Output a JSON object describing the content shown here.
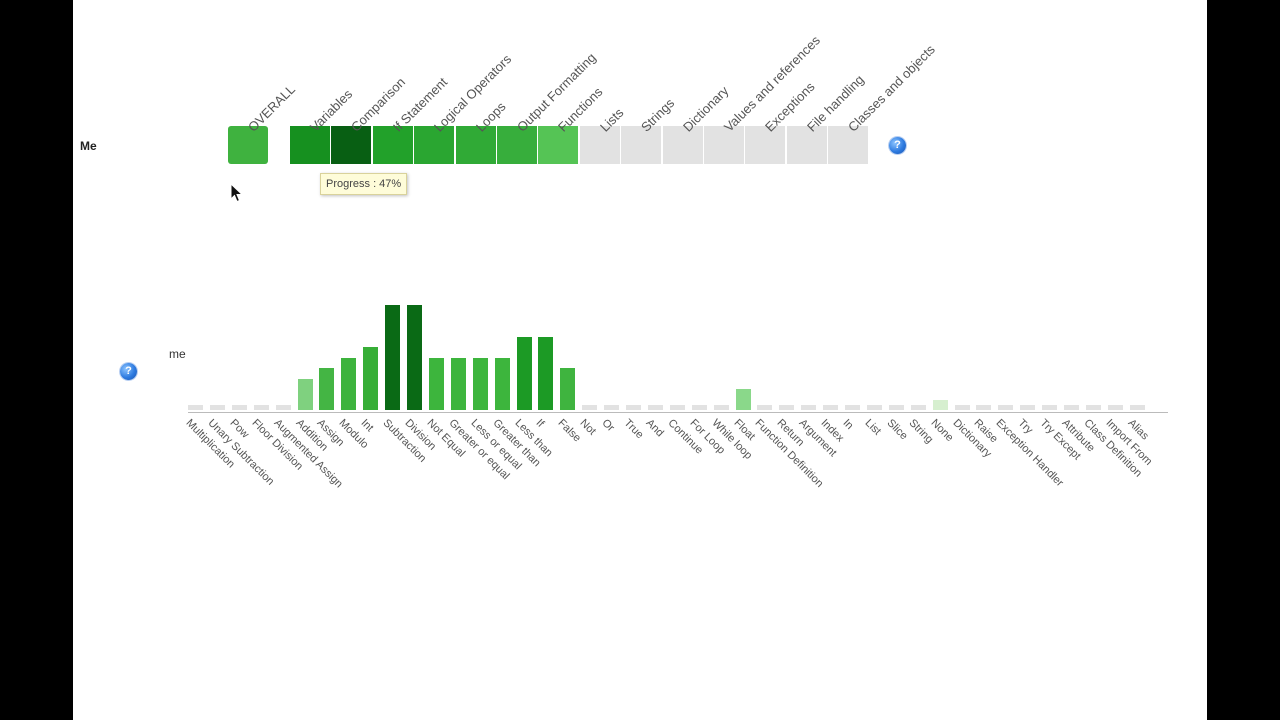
{
  "row_label": "Me",
  "columns": [
    {
      "label": "OVERALL",
      "color": "#3fb23f"
    },
    {
      "label": "Variables",
      "color": "#16901f"
    },
    {
      "label": "Comparison",
      "color": "#085f13"
    },
    {
      "label": "If Statement",
      "color": "#22a12a"
    },
    {
      "label": "Logical Operators",
      "color": "#2aa631"
    },
    {
      "label": "Loops",
      "color": "#30aa36"
    },
    {
      "label": "Output Formatting",
      "color": "#37ae3c"
    },
    {
      "label": "Functions",
      "color": "#55c455"
    },
    {
      "label": "Lists",
      "color": "#e2e2e2"
    },
    {
      "label": "Strings",
      "color": "#e2e2e2"
    },
    {
      "label": "Dictionary",
      "color": "#e2e2e2"
    },
    {
      "label": "Values and references",
      "color": "#e2e2e2"
    },
    {
      "label": "Exceptions",
      "color": "#e2e2e2"
    },
    {
      "label": "File handling",
      "color": "#e2e2e2"
    },
    {
      "label": "Classes and objects",
      "color": "#e2e2e2"
    }
  ],
  "tooltip": "Progress : 47%",
  "chart_label": "me",
  "chart_data": {
    "type": "bar",
    "categories": [
      "Multiplication",
      "Unary Subtraction",
      "Pow",
      "Floor Division",
      "Augmented Assign",
      "Addition",
      "Assign",
      "Modulo",
      "Int",
      "Subtraction",
      "Division",
      "Not Equal",
      "Greater or equal",
      "Less or equal",
      "Greater than",
      "Less than",
      "If",
      "False",
      "Not",
      "Or",
      "True",
      "And",
      "Continue",
      "For Loop",
      "While loop",
      "Float",
      "Function Definition",
      "Return",
      "Argument",
      "Index",
      "In",
      "List",
      "Slice",
      "String",
      "None",
      "Dictionary",
      "Raise",
      "Exception Handler",
      "Try",
      "Try Except",
      "Attribute",
      "Class Definition",
      "Import From",
      "Alias"
    ],
    "values": [
      0,
      0,
      0,
      0,
      0,
      3,
      4,
      5,
      6,
      10,
      10,
      5,
      5,
      5,
      5,
      7,
      7,
      4,
      0,
      0,
      0,
      0,
      0,
      0,
      0,
      2,
      0,
      0,
      0,
      0,
      0,
      0,
      0,
      0,
      1,
      0,
      0,
      0,
      0,
      0,
      0,
      0,
      0,
      0
    ],
    "colors": [
      "#e2e2e2",
      "#e2e2e2",
      "#e2e2e2",
      "#e2e2e2",
      "#e2e2e2",
      "#7fd17f",
      "#44b544",
      "#3db33d",
      "#37ae37",
      "#0a6a15",
      "#0a6a15",
      "#3db53d",
      "#3db53d",
      "#3db53d",
      "#3db53d",
      "#1c9a25",
      "#1c9a25",
      "#3fb43f",
      "#e2e2e2",
      "#e2e2e2",
      "#e2e2e2",
      "#e2e2e2",
      "#e2e2e2",
      "#e2e2e2",
      "#e2e2e2",
      "#8ad88a",
      "#e2e2e2",
      "#e2e2e2",
      "#e2e2e2",
      "#e2e2e2",
      "#e2e2e2",
      "#e2e2e2",
      "#e2e2e2",
      "#e2e2e2",
      "#d6efcf",
      "#e2e2e2",
      "#e2e2e2",
      "#e2e2e2",
      "#e2e2e2",
      "#e2e2e2",
      "#e2e2e2",
      "#e2e2e2",
      "#e2e2e2",
      "#e2e2e2"
    ],
    "ylim": [
      0,
      10
    ],
    "grid": false
  },
  "icons": {
    "help": "help-icon",
    "cursor": "mouse-cursor-icon"
  }
}
